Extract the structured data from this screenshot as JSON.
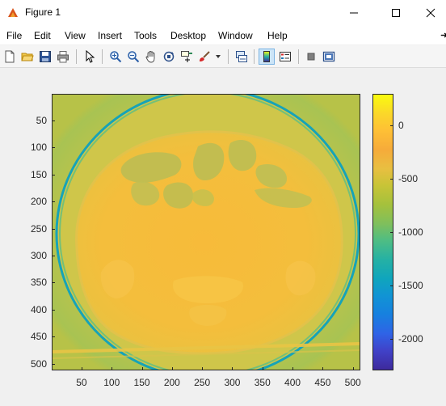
{
  "window": {
    "title": "Figure 1"
  },
  "menu": {
    "items": [
      "File",
      "Edit",
      "View",
      "Insert",
      "Tools",
      "Desktop",
      "Window",
      "Help"
    ]
  },
  "toolbar": {
    "buttons": [
      {
        "name": "new-figure-icon"
      },
      {
        "name": "open-file-icon"
      },
      {
        "name": "save-icon"
      },
      {
        "name": "print-icon"
      },
      {
        "name": "edit-plot-cursor-icon"
      },
      {
        "name": "zoom-in-icon"
      },
      {
        "name": "zoom-out-icon"
      },
      {
        "name": "pan-hand-icon"
      },
      {
        "name": "rotate-3d-icon"
      },
      {
        "name": "data-cursor-icon"
      },
      {
        "name": "brush-icon"
      },
      {
        "name": "link-plot-icon"
      },
      {
        "name": "insert-colorbar-icon",
        "pressed": true
      },
      {
        "name": "insert-legend-icon"
      },
      {
        "name": "hide-plot-tools-icon"
      },
      {
        "name": "show-plot-tools-icon"
      }
    ]
  },
  "chart_data": {
    "type": "heatmap",
    "title": "",
    "xlabel": "",
    "ylabel": "",
    "x_ticks": [
      50,
      100,
      150,
      200,
      250,
      300,
      350,
      400,
      450,
      500
    ],
    "y_ticks": [
      50,
      100,
      150,
      200,
      250,
      300,
      350,
      400,
      450,
      500
    ],
    "xlim": [
      0.5,
      512.5
    ],
    "ylim": [
      0.5,
      512.5
    ],
    "y_direction": "reverse",
    "colormap": "parula",
    "colorbar": {
      "ticks": [
        0,
        -500,
        -1000,
        -1500,
        -2000
      ],
      "clim": [
        -2300,
        300
      ]
    }
  }
}
